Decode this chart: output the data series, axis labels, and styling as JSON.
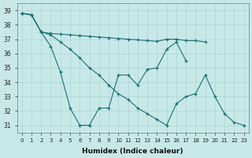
{
  "xlabel": "Humidex (Indice chaleur)",
  "xlim": [
    -0.5,
    23.5
  ],
  "ylim": [
    30.5,
    39.5
  ],
  "yticks": [
    31,
    32,
    33,
    34,
    35,
    36,
    37,
    38,
    39
  ],
  "bg_color": "#c8e8e8",
  "grid_color": "#aad4d4",
  "line_color": "#1a7070",
  "line1_x": [
    0,
    1,
    2,
    3,
    4,
    5,
    6,
    7,
    8,
    9,
    10,
    11,
    12,
    13,
    14,
    15,
    16,
    17
  ],
  "line1_y": [
    38.8,
    38.7,
    37.5,
    36.5,
    34.7,
    32.2,
    31.0,
    31.0,
    32.2,
    32.2,
    34.5,
    34.5,
    33.8,
    34.9,
    35.0,
    36.3,
    36.8,
    35.5
  ],
  "line2_x": [
    0,
    1,
    2,
    3,
    4,
    5,
    6,
    7,
    8,
    9,
    10,
    11,
    12,
    13,
    14,
    15,
    16,
    17,
    18,
    19
  ],
  "line2_y": [
    38.8,
    38.7,
    37.5,
    37.4,
    37.35,
    37.3,
    37.25,
    37.2,
    37.15,
    37.1,
    37.05,
    37.0,
    36.95,
    36.9,
    36.85,
    37.0,
    37.0,
    36.9,
    36.9,
    36.8
  ],
  "line3_x": [
    0,
    1,
    2,
    3,
    4,
    5,
    6,
    7,
    8,
    9,
    10,
    11,
    12,
    13,
    14,
    15,
    16,
    17,
    18,
    19,
    20,
    21,
    22,
    23
  ],
  "line3_y": [
    38.8,
    38.7,
    37.5,
    37.3,
    36.8,
    36.3,
    35.7,
    35.0,
    34.5,
    33.8,
    33.2,
    32.8,
    32.2,
    31.8,
    31.4,
    31.0,
    32.5,
    33.0,
    33.2,
    34.5,
    33.0,
    31.8,
    31.2,
    31.0
  ]
}
